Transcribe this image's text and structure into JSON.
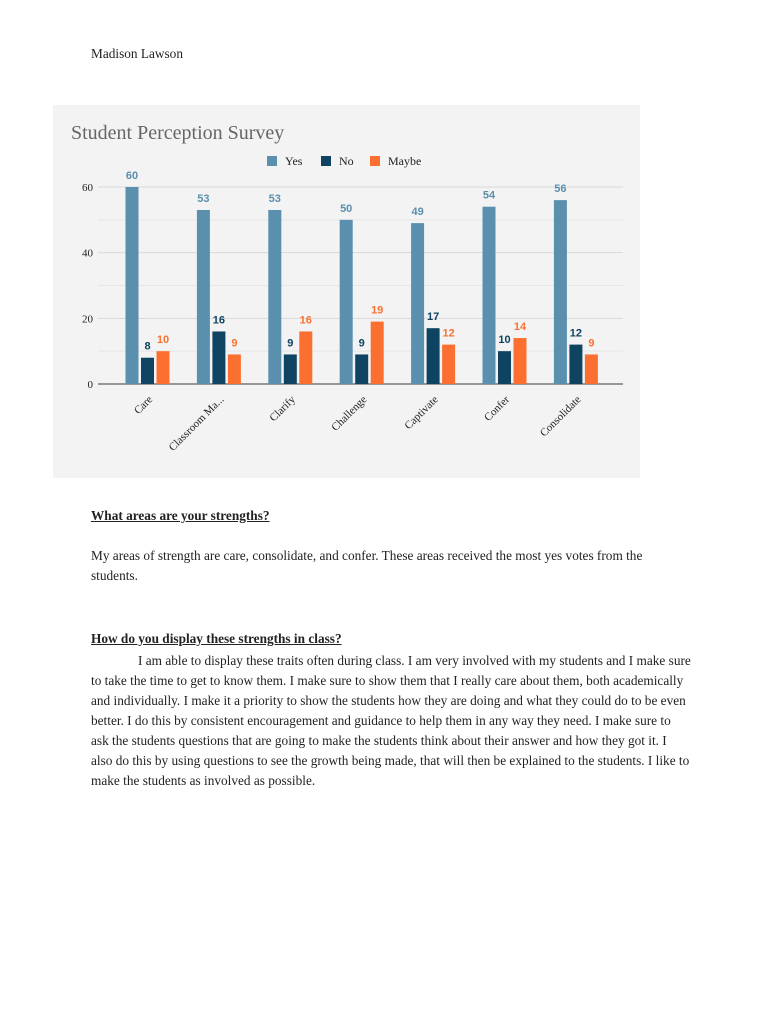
{
  "author": "Madison Lawson",
  "chart_data": {
    "type": "bar",
    "title": "Student Perception Survey",
    "categories": [
      "Care",
      "Classroom Ma...",
      "Clarify",
      "Challenge",
      "Captivate",
      "Confer",
      "Consolidate"
    ],
    "series": [
      {
        "name": "Yes",
        "color": "#5a8fae",
        "values": [
          60,
          53,
          53,
          50,
          49,
          54,
          56
        ]
      },
      {
        "name": "No",
        "color": "#0e4461",
        "values": [
          8,
          16,
          9,
          9,
          17,
          10,
          12
        ]
      },
      {
        "name": "Maybe",
        "color": "#fb7030",
        "values": [
          10,
          9,
          16,
          19,
          12,
          14,
          9
        ]
      }
    ],
    "ylim": [
      0,
      60
    ],
    "yticks": [
      "0",
      "20",
      "40",
      "60"
    ],
    "grid": true,
    "legend": "top",
    "data_labels": true
  },
  "sections": [
    {
      "question": "What areas are your strengths?",
      "answer": "My areas of strength are care, consolidate, and confer. These areas received the most yes votes from the students."
    },
    {
      "question": "How do you display these strengths in class?",
      "answer": "I am able to display these traits often during class. I am very involved with my students and I make sure to take the time to get to know them. I make sure to show them that I really care about them, both academically and individually. I make it a priority to show the students how they are doing and what they could do to be even better. I do this by consistent encouragement and guidance to help them in any way they need. I make sure to ask the students questions that are going to make the students think about their answer and how they got it. I also do this by using questions to see the growth being made, that will then be explained to the students. I like to make the students as involved as possible."
    }
  ]
}
